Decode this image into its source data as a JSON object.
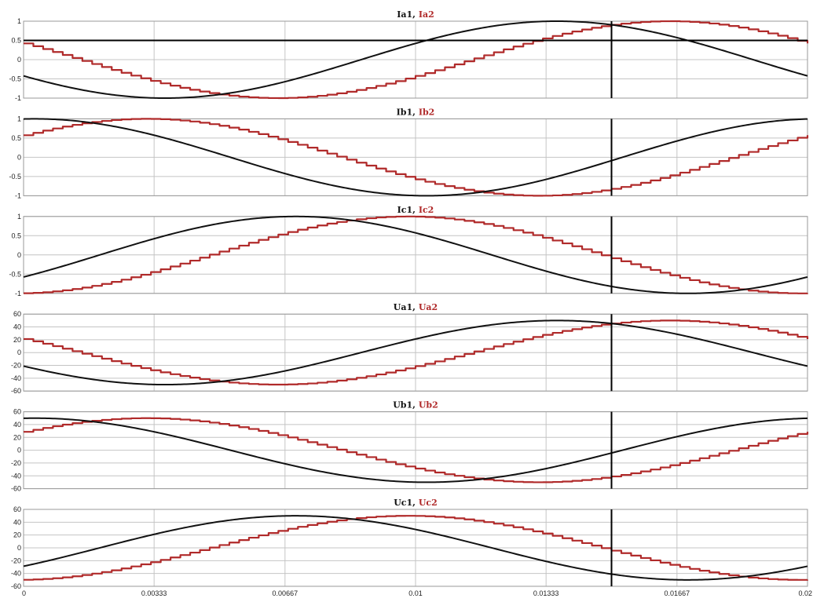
{
  "colors": {
    "series1": "#111111",
    "series2": "#b02a2a",
    "grid": "#c4c4c4",
    "marker": "#000000",
    "frame": "#9a9a9a"
  },
  "chart_data": {
    "type": "line",
    "x_ticks": [
      "0",
      "0.00333",
      "0.00667",
      "0.01",
      "0.01333",
      "0.01667",
      "0.02"
    ],
    "xlim": [
      0,
      0.02
    ],
    "cursor_x": 0.015,
    "grid": true,
    "panels": [
      {
        "id": "ia",
        "name1": "Ia1",
        "name2": "Ia2",
        "separator": ", ",
        "ylim": [
          -1,
          1
        ],
        "y_ticks": [
          "1",
          "0.5",
          "0",
          "-0.5",
          "-1"
        ],
        "y_tick_values": [
          1,
          0.5,
          0,
          -0.5,
          -1
        ],
        "amplitude": 1,
        "phase1_deg": -155,
        "phase2_deg": -205,
        "h_marker": 0.5
      },
      {
        "id": "ib",
        "name1": "Ib1",
        "name2": "Ib2",
        "separator": ", ",
        "ylim": [
          -1,
          1
        ],
        "y_ticks": [
          "1",
          "0.5",
          "0",
          "-0.5",
          "-1"
        ],
        "y_tick_values": [
          1,
          0.5,
          0,
          -0.5,
          -1
        ],
        "amplitude": 1,
        "phase1_deg": 85,
        "phase2_deg": 35
      },
      {
        "id": "ic",
        "name1": "Ic1",
        "name2": "Ic2",
        "separator": ", ",
        "ylim": [
          -1,
          1
        ],
        "y_ticks": [
          "1",
          "0.5",
          "0",
          "-0.5",
          "-1"
        ],
        "y_tick_values": [
          1,
          0.5,
          0,
          -0.5,
          -1
        ],
        "amplitude": 1,
        "phase1_deg": -35,
        "phase2_deg": -85
      },
      {
        "id": "ua",
        "name1": "Ua1",
        "name2": "Ua2",
        "separator": ", ",
        "ylim": [
          -60,
          60
        ],
        "y_ticks": [
          "60",
          "40",
          "20",
          "0",
          "-20",
          "-40",
          "-60"
        ],
        "y_tick_values": [
          60,
          40,
          20,
          0,
          -20,
          -40,
          -60
        ],
        "amplitude": 50,
        "phase1_deg": -155,
        "phase2_deg": -205
      },
      {
        "id": "ub",
        "name1": "Ub1",
        "name2": "Ub2",
        "separator": ", ",
        "ylim": [
          -60,
          60
        ],
        "y_ticks": [
          "60",
          "40",
          "20",
          "0",
          "-20",
          "-40",
          "-60"
        ],
        "y_tick_values": [
          60,
          40,
          20,
          0,
          -20,
          -40,
          -60
        ],
        "amplitude": 50,
        "phase1_deg": 85,
        "phase2_deg": 35
      },
      {
        "id": "uc",
        "name1": "Uc1",
        "name2": "Uc2",
        "separator": ", ",
        "ylim": [
          -60,
          60
        ],
        "y_ticks": [
          "60",
          "40",
          "20",
          "0",
          "-20",
          "-40",
          "-60"
        ],
        "y_tick_values": [
          60,
          40,
          20,
          0,
          -20,
          -40,
          -60
        ],
        "amplitude": 50,
        "phase1_deg": -35,
        "phase2_deg": -85
      }
    ]
  }
}
